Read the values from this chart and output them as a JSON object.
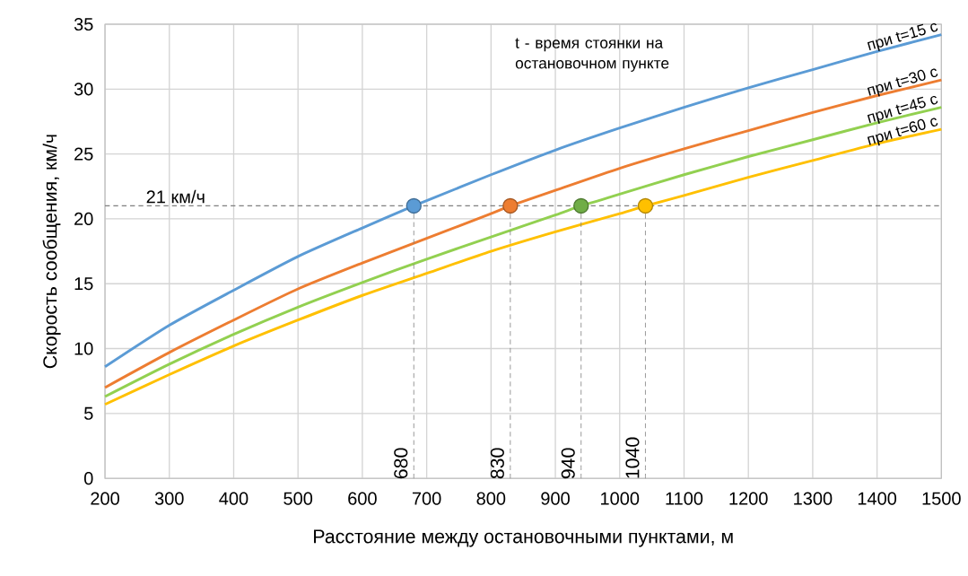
{
  "chart_data": {
    "type": "line",
    "xlabel": "Расстояние между остановочными пунктами, м",
    "ylabel": "Скорость сообщения, км/ч",
    "xlim": [
      200,
      1500
    ],
    "ylim": [
      0,
      35
    ],
    "xticks": [
      200,
      300,
      400,
      500,
      600,
      700,
      800,
      900,
      1000,
      1100,
      1200,
      1300,
      1400,
      1500
    ],
    "yticks": [
      0,
      5,
      10,
      15,
      20,
      25,
      30,
      35
    ],
    "grid": true,
    "series": [
      {
        "name": "при t=15 с",
        "color": "#5b9bd5",
        "x": [
          200,
          300,
          400,
          500,
          600,
          680,
          700,
          800,
          900,
          1000,
          1100,
          1200,
          1300,
          1400,
          1500
        ],
        "values": [
          8.6,
          11.8,
          14.5,
          17.1,
          19.3,
          21,
          21.4,
          23.4,
          25.3,
          27.0,
          28.6,
          30.1,
          31.5,
          32.9,
          34.2
        ]
      },
      {
        "name": "при t=30 с",
        "color": "#ed7d31",
        "x": [
          200,
          300,
          400,
          500,
          600,
          700,
          800,
          830,
          900,
          1000,
          1100,
          1200,
          1300,
          1400,
          1500
        ],
        "values": [
          7.0,
          9.7,
          12.2,
          14.6,
          16.6,
          18.5,
          20.4,
          21,
          22.2,
          23.9,
          25.4,
          26.8,
          28.2,
          29.5,
          30.7
        ]
      },
      {
        "name": "при t=45 с",
        "color": "#92d050",
        "x": [
          200,
          300,
          400,
          500,
          600,
          700,
          800,
          900,
          940,
          1000,
          1100,
          1200,
          1300,
          1400,
          1500
        ],
        "values": [
          6.3,
          8.8,
          11.1,
          13.2,
          15.1,
          16.9,
          18.6,
          20.3,
          21,
          21.9,
          23.4,
          24.8,
          26.1,
          27.4,
          28.6
        ]
      },
      {
        "name": "при t=60 с",
        "color": "#ffc000",
        "x": [
          200,
          300,
          400,
          500,
          600,
          700,
          800,
          900,
          1000,
          1040,
          1100,
          1200,
          1300,
          1400,
          1500
        ],
        "values": [
          5.7,
          8.0,
          10.2,
          12.2,
          14.1,
          15.8,
          17.5,
          19.0,
          20.4,
          21,
          21.8,
          23.2,
          24.5,
          25.8,
          26.9
        ]
      },
      {
        "type": "line",
        "color": "#7f7f7f",
        "line_style": "dashed",
        "x": [
          680,
          680
        ],
        "values": [
          0,
          21
        ]
      },
      {
        "type": "line",
        "color": "#7f7f7f",
        "line_style": "dashed",
        "x": [
          830,
          830
        ],
        "values": [
          0,
          21
        ]
      },
      {
        "type": "line",
        "color": "#7f7f7f",
        "line_style": "dashed",
        "x": [
          940,
          940
        ],
        "values": [
          0,
          21
        ]
      },
      {
        "type": "line",
        "color": "#7f7f7f",
        "line_style": "dashed",
        "x": [
          1040,
          1040
        ],
        "values": [
          0,
          21
        ]
      },
      {
        "type": "scatter",
        "marker": "circle",
        "x": [
          680,
          830,
          940,
          1040
        ],
        "values": [
          21,
          21,
          21,
          21
        ],
        "colors": [
          "#5b9bd5",
          "#ed7d31",
          "#70ad47",
          "#ffc000"
        ]
      }
    ],
    "ref_lines": [
      {
        "axis": "y",
        "value": 21,
        "label": "21 км/ч",
        "color": "#7f7f7f",
        "line_style": "dashed"
      }
    ],
    "annotations": [
      "t - время стоянки на остановочном пункте",
      {
        "text": "680",
        "x": 680,
        "y": 0
      },
      {
        "text": "830",
        "x": 830,
        "y": 0
      },
      {
        "text": "940",
        "x": 940,
        "y": 0
      },
      {
        "text": "1040",
        "x": 1040,
        "y": 0
      }
    ]
  }
}
